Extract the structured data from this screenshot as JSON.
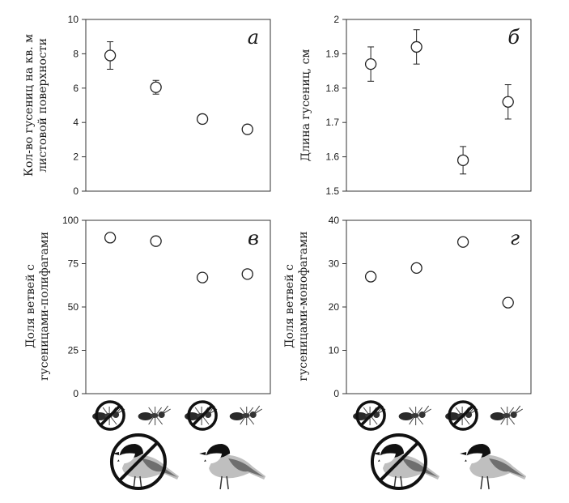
{
  "colors": {
    "axis": "#333333",
    "marker": "#222222",
    "background": "#ffffff"
  },
  "chart_data": [
    {
      "type": "scatter",
      "panel_label": "а",
      "ylabel_lines": [
        "Кол-во гусениц на кв. м",
        "листовой поверхности"
      ],
      "ylim": [
        0,
        10
      ],
      "yticks": [
        "0",
        "2",
        "4",
        "6",
        "8",
        "10"
      ],
      "values": [
        7.9,
        6.05,
        4.2,
        3.6
      ],
      "errors": [
        0.8,
        0.4,
        0.25,
        0.2
      ],
      "grid": false
    },
    {
      "type": "scatter",
      "panel_label": "б",
      "ylabel_lines": [
        "Длина гусениц, см"
      ],
      "ylim": [
        1.5,
        2
      ],
      "yticks": [
        "1.5",
        "1.6",
        "1.7",
        "1.8",
        "1.9",
        "2"
      ],
      "values": [
        1.87,
        1.92,
        1.59,
        1.76
      ],
      "errors": [
        0.05,
        0.05,
        0.04,
        0.05
      ],
      "grid": false
    },
    {
      "type": "scatter",
      "panel_label": "в",
      "ylabel_lines": [
        "Доля ветвей с",
        "гусеницами-полифагами"
      ],
      "ylim": [
        0,
        100
      ],
      "yticks": [
        "0",
        "25",
        "50",
        "75",
        "100"
      ],
      "values": [
        90,
        88,
        67,
        69
      ],
      "grid": false
    },
    {
      "type": "scatter",
      "panel_label": "г",
      "ylabel_lines": [
        "Доля ветвей с",
        "гусеницами-монофагами"
      ],
      "ylim": [
        0,
        40
      ],
      "yticks": [
        "0",
        "10",
        "20",
        "30",
        "40"
      ],
      "values": [
        27,
        29,
        35,
        21
      ],
      "grid": false
    }
  ],
  "legend": {
    "ants": [
      {
        "icon": "ant-icon",
        "excluded": true
      },
      {
        "icon": "ant-icon",
        "excluded": false
      },
      {
        "icon": "ant-icon",
        "excluded": true
      },
      {
        "icon": "ant-icon",
        "excluded": false
      }
    ],
    "birds": [
      {
        "icon": "chickadee-icon",
        "excluded": true
      },
      {
        "icon": "chickadee-icon",
        "excluded": false
      }
    ]
  }
}
